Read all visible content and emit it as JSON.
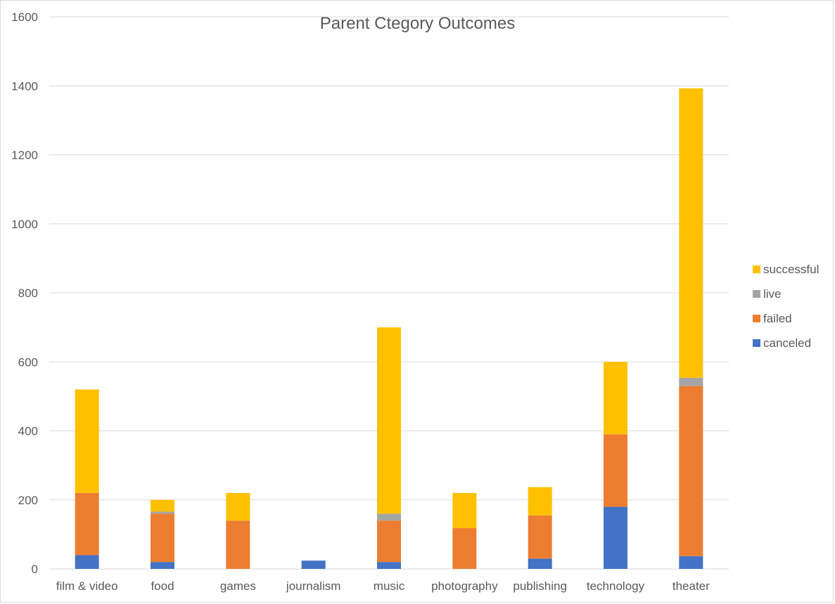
{
  "colors": {
    "canceled": "#4472C4",
    "failed": "#ED7D31",
    "live": "#A5A5A5",
    "successful": "#FFC000",
    "grid": "#d9d9d9",
    "text": "#595959"
  },
  "chart_data": {
    "type": "bar",
    "stacked": true,
    "title": "Parent Ctegory Outcomes",
    "xlabel": "",
    "ylabel": "",
    "ylim": [
      0,
      1600
    ],
    "yticks": [
      0,
      200,
      400,
      600,
      800,
      1000,
      1200,
      1400,
      1600
    ],
    "ytick_labels": [
      "0",
      "200",
      "400",
      "600",
      "800",
      "1000",
      "1200",
      "1400",
      "1600"
    ],
    "grid": true,
    "legend_position": "right",
    "categories": [
      "film & video",
      "food",
      "games",
      "journalism",
      "music",
      "photography",
      "publishing",
      "technology",
      "theater"
    ],
    "series": [
      {
        "name": "canceled",
        "values": [
          40,
          20,
          0,
          24,
          20,
          0,
          30,
          180,
          37
        ]
      },
      {
        "name": "failed",
        "values": [
          180,
          140,
          140,
          0,
          120,
          118,
          125,
          210,
          493
        ]
      },
      {
        "name": "live",
        "values": [
          0,
          6,
          0,
          0,
          20,
          0,
          0,
          0,
          24
        ]
      },
      {
        "name": "successful",
        "values": [
          300,
          34,
          80,
          0,
          540,
          102,
          82,
          210,
          839
        ]
      }
    ],
    "legend_order": [
      "successful",
      "live",
      "failed",
      "canceled"
    ]
  }
}
